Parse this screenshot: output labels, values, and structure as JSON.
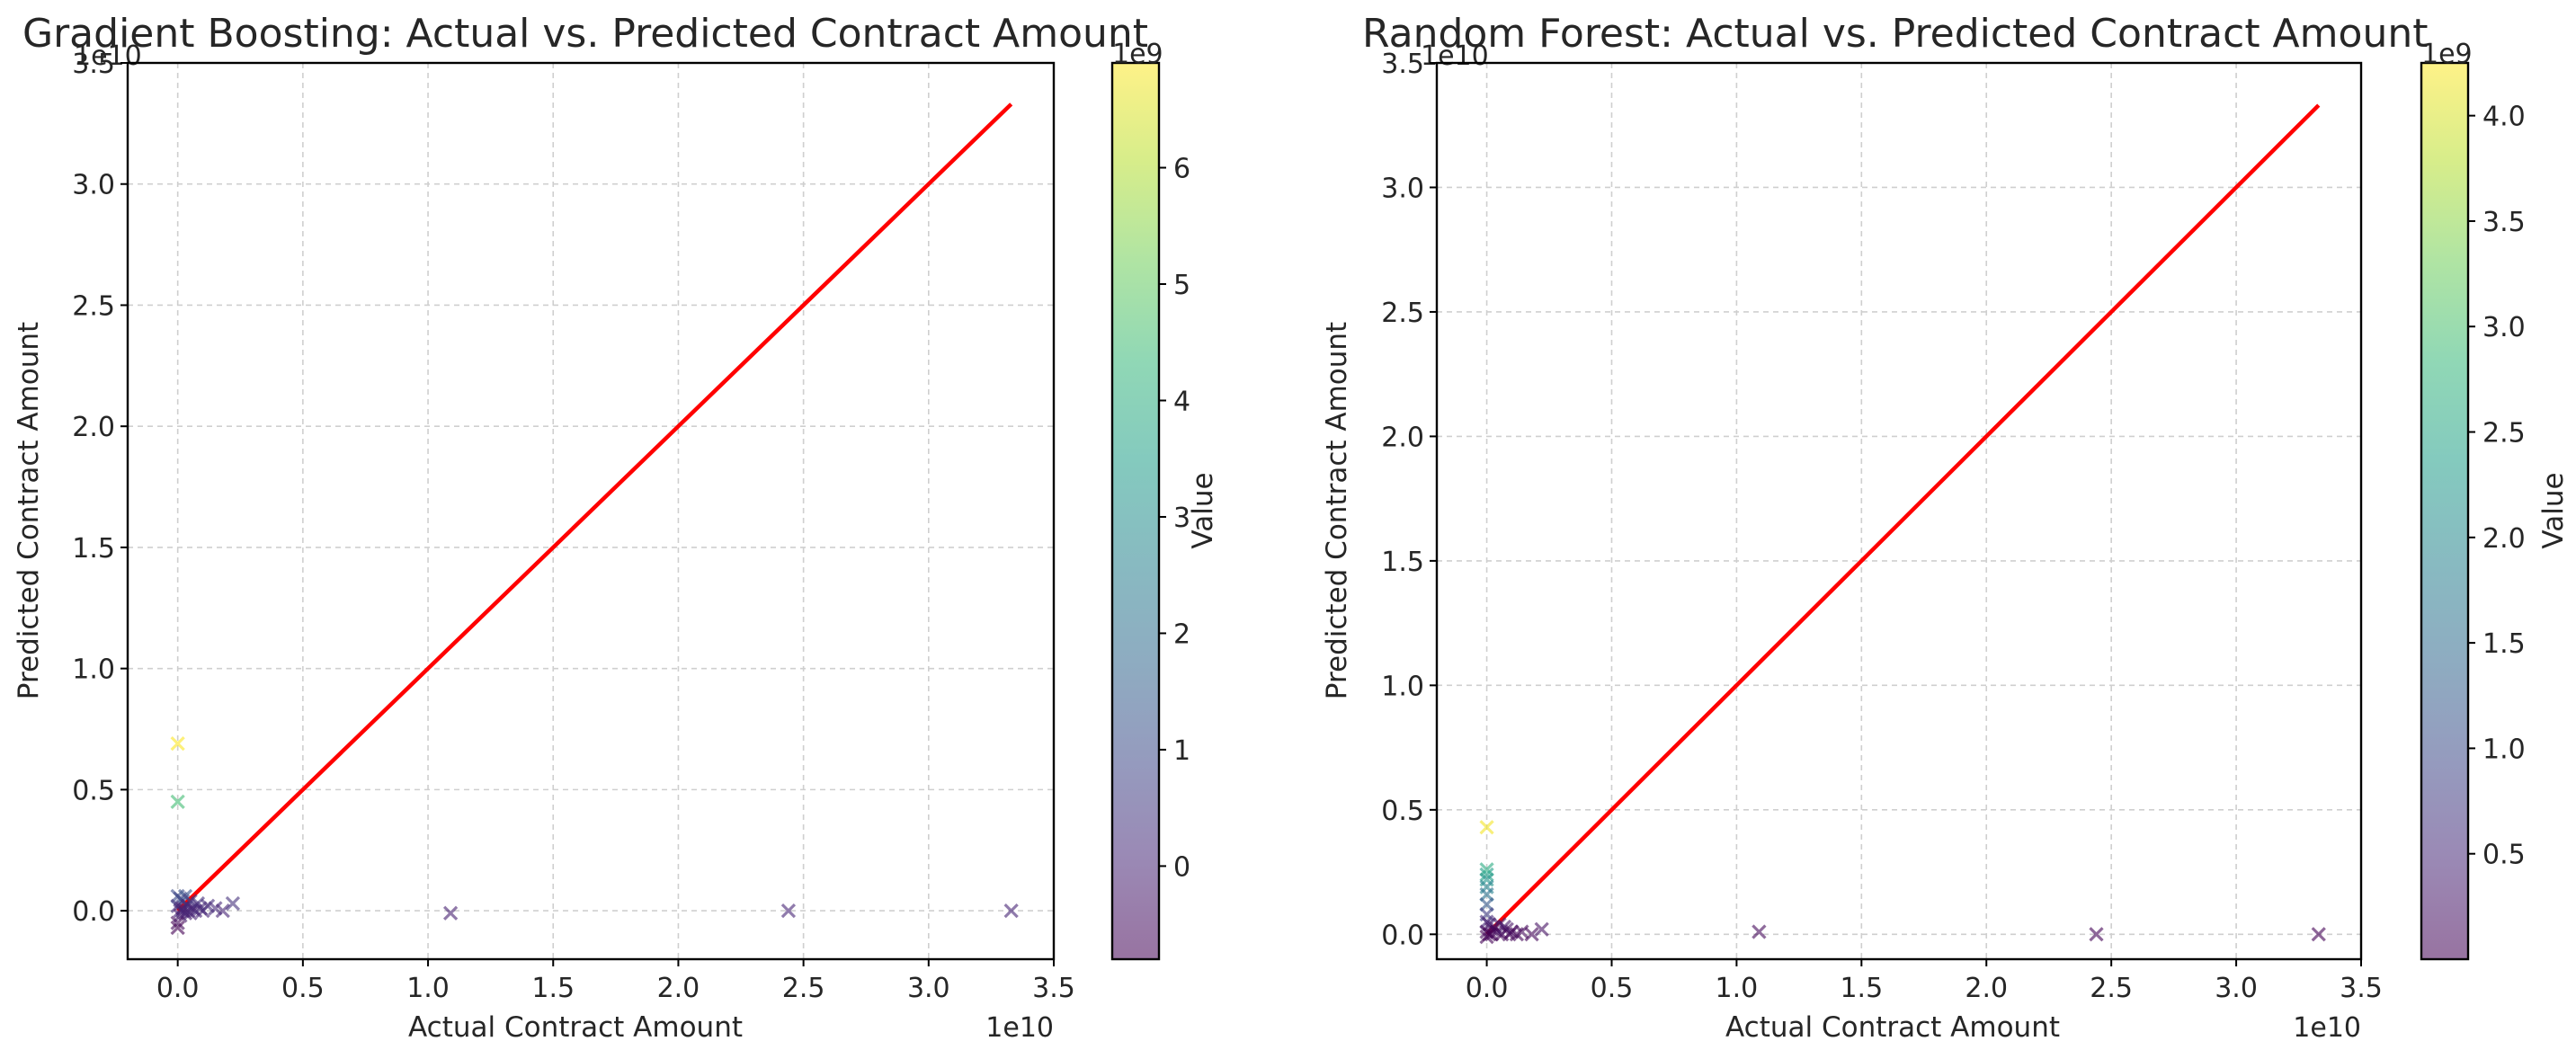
{
  "colormap": [
    "#440154",
    "#482878",
    "#3e4989",
    "#31688e",
    "#26828e",
    "#1f9e89",
    "#35b779",
    "#6ece58",
    "#b5de2b",
    "#fde725"
  ],
  "regression_line_color": "#ff0000",
  "chart_data": [
    {
      "type": "scatter",
      "title": "Gradient Boosting: Actual vs. Predicted Contract Amount",
      "xlabel": "Actual Contract Amount",
      "ylabel": "Predicted Contract Amount",
      "x_offset_label": "1e10",
      "y_offset_label": "1e10",
      "xlim": [
        -0.2,
        3.5
      ],
      "ylim": [
        -0.2,
        3.5
      ],
      "x_ticks": [
        "0.0",
        "0.5",
        "1.0",
        "1.5",
        "2.0",
        "2.5",
        "3.0",
        "3.5"
      ],
      "y_ticks": [
        "0.0",
        "0.5",
        "1.0",
        "1.5",
        "2.0",
        "2.5",
        "3.0",
        "3.5"
      ],
      "grid": true,
      "marker": "x",
      "ideal_line": {
        "from": [
          0,
          0
        ],
        "to": [
          3.33,
          3.33
        ]
      },
      "colorbar": {
        "label": "Value",
        "offset_label": "1e9",
        "range": [
          -0.8,
          6.9
        ],
        "ticks": [
          "0",
          "1",
          "2",
          "3",
          "4",
          "5",
          "6"
        ]
      },
      "points": [
        [
          0.0,
          0.69,
          6.9
        ],
        [
          0.0,
          0.45,
          4.5
        ],
        [
          0.0,
          0.06,
          1.0
        ],
        [
          0.01,
          0.05,
          0.8
        ],
        [
          0.03,
          0.06,
          1.2
        ],
        [
          0.05,
          0.04,
          0.5
        ],
        [
          0.02,
          0.04,
          0.9
        ],
        [
          0.0,
          0.02,
          0.3
        ],
        [
          0.02,
          0.01,
          -0.1
        ],
        [
          0.04,
          0.02,
          0.2
        ],
        [
          0.06,
          0.01,
          0.1
        ],
        [
          0.08,
          0.03,
          0.3
        ],
        [
          0.1,
          0.0,
          0.0
        ],
        [
          0.12,
          0.02,
          0.2
        ],
        [
          0.15,
          0.01,
          0.1
        ],
        [
          0.01,
          -0.02,
          -0.3
        ],
        [
          0.03,
          -0.01,
          -0.2
        ],
        [
          0.0,
          -0.05,
          -0.6
        ],
        [
          0.0,
          -0.07,
          -0.8
        ],
        [
          0.02,
          0.0,
          0.0
        ],
        [
          0.05,
          -0.01,
          -0.1
        ],
        [
          0.07,
          0.0,
          0.0
        ],
        [
          0.09,
          0.01,
          0.1
        ],
        [
          0.04,
          0.0,
          0.0
        ],
        [
          0.01,
          0.0,
          0.0
        ],
        [
          0.18,
          0.0,
          0.0
        ],
        [
          0.22,
          0.03,
          0.3
        ],
        [
          1.09,
          -0.01,
          -0.1
        ],
        [
          2.44,
          0.0,
          0.0
        ],
        [
          3.33,
          0.0,
          0.0
        ]
      ]
    },
    {
      "type": "scatter",
      "title": "Random Forest: Actual vs. Predicted Contract Amount",
      "xlabel": "Actual Contract Amount",
      "ylabel": "Predicted Contract Amount",
      "x_offset_label": "1e10",
      "y_offset_label": "1e10",
      "xlim": [
        -0.2,
        3.5
      ],
      "ylim": [
        -0.1,
        3.5
      ],
      "x_ticks": [
        "0.0",
        "0.5",
        "1.0",
        "1.5",
        "2.0",
        "2.5",
        "3.0",
        "3.5"
      ],
      "y_ticks": [
        "0.0",
        "0.5",
        "1.0",
        "1.5",
        "2.0",
        "2.5",
        "3.0",
        "3.5"
      ],
      "grid": true,
      "marker": "x",
      "ideal_line": {
        "from": [
          0,
          0
        ],
        "to": [
          3.33,
          3.33
        ]
      },
      "colorbar": {
        "label": "Value",
        "offset_label": "1e9",
        "range": [
          0.0,
          4.25
        ],
        "ticks": [
          "0.5",
          "1.0",
          "1.5",
          "2.0",
          "2.5",
          "3.0",
          "3.5",
          "4.0"
        ]
      },
      "points": [
        [
          0.0,
          0.43,
          4.2
        ],
        [
          0.0,
          0.26,
          2.6
        ],
        [
          0.0,
          0.24,
          2.4
        ],
        [
          0.0,
          0.22,
          2.2
        ],
        [
          0.0,
          0.19,
          1.9
        ],
        [
          0.0,
          0.16,
          1.6
        ],
        [
          0.0,
          0.12,
          1.2
        ],
        [
          0.0,
          0.08,
          0.8
        ],
        [
          0.0,
          0.05,
          0.5
        ],
        [
          0.01,
          0.04,
          0.4
        ],
        [
          0.03,
          0.03,
          0.3
        ],
        [
          0.05,
          0.04,
          0.4
        ],
        [
          0.02,
          0.02,
          0.2
        ],
        [
          0.0,
          0.01,
          0.1
        ],
        [
          0.02,
          0.0,
          0.05
        ],
        [
          0.04,
          0.01,
          0.1
        ],
        [
          0.06,
          0.0,
          0.05
        ],
        [
          0.08,
          0.02,
          0.2
        ],
        [
          0.1,
          0.01,
          0.1
        ],
        [
          0.12,
          0.0,
          0.05
        ],
        [
          0.14,
          0.01,
          0.1
        ],
        [
          0.07,
          0.03,
          0.3
        ],
        [
          0.09,
          0.0,
          0.05
        ],
        [
          0.0,
          -0.01,
          0.02
        ],
        [
          0.01,
          0.0,
          0.03
        ],
        [
          0.18,
          0.0,
          0.05
        ],
        [
          0.22,
          0.02,
          0.2
        ],
        [
          1.09,
          0.01,
          0.1
        ],
        [
          2.44,
          0.0,
          0.03
        ],
        [
          3.33,
          0.0,
          0.03
        ]
      ]
    }
  ]
}
